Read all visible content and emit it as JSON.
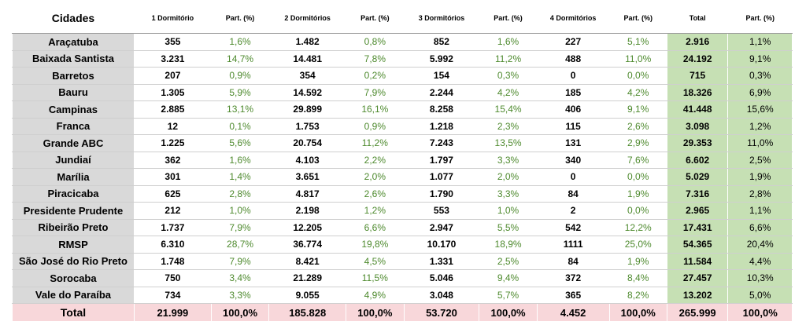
{
  "headers": [
    "Cidades",
    "1 Dormitório",
    "Part. (%)",
    "2 Dormitórios",
    "Part. (%)",
    "3 Dormitórios",
    "Part. (%)",
    "4 Dormitórios",
    "Part. (%)",
    "Total",
    "Part. (%)"
  ],
  "rows": [
    [
      "Araçatuba",
      "355",
      "1,6%",
      "1.482",
      "0,8%",
      "852",
      "1,6%",
      "227",
      "5,1%",
      "2.916",
      "1,1%"
    ],
    [
      "Baixada Santista",
      "3.231",
      "14,7%",
      "14.481",
      "7,8%",
      "5.992",
      "11,2%",
      "488",
      "11,0%",
      "24.192",
      "9,1%"
    ],
    [
      "Barretos",
      "207",
      "0,9%",
      "354",
      "0,2%",
      "154",
      "0,3%",
      "0",
      "0,0%",
      "715",
      "0,3%"
    ],
    [
      "Bauru",
      "1.305",
      "5,9%",
      "14.592",
      "7,9%",
      "2.244",
      "4,2%",
      "185",
      "4,2%",
      "18.326",
      "6,9%"
    ],
    [
      "Campinas",
      "2.885",
      "13,1%",
      "29.899",
      "16,1%",
      "8.258",
      "15,4%",
      "406",
      "9,1%",
      "41.448",
      "15,6%"
    ],
    [
      "Franca",
      "12",
      "0,1%",
      "1.753",
      "0,9%",
      "1.218",
      "2,3%",
      "115",
      "2,6%",
      "3.098",
      "1,2%"
    ],
    [
      "Grande ABC",
      "1.225",
      "5,6%",
      "20.754",
      "11,2%",
      "7.243",
      "13,5%",
      "131",
      "2,9%",
      "29.353",
      "11,0%"
    ],
    [
      "Jundiaí",
      "362",
      "1,6%",
      "4.103",
      "2,2%",
      "1.797",
      "3,3%",
      "340",
      "7,6%",
      "6.602",
      "2,5%"
    ],
    [
      "Marília",
      "301",
      "1,4%",
      "3.651",
      "2,0%",
      "1.077",
      "2,0%",
      "0",
      "0,0%",
      "5.029",
      "1,9%"
    ],
    [
      "Piracicaba",
      "625",
      "2,8%",
      "4.817",
      "2,6%",
      "1.790",
      "3,3%",
      "84",
      "1,9%",
      "7.316",
      "2,8%"
    ],
    [
      "Presidente Prudente",
      "212",
      "1,0%",
      "2.198",
      "1,2%",
      "553",
      "1,0%",
      "2",
      "0,0%",
      "2.965",
      "1,1%"
    ],
    [
      "Ribeirão Preto",
      "1.737",
      "7,9%",
      "12.205",
      "6,6%",
      "2.947",
      "5,5%",
      "542",
      "12,2%",
      "17.431",
      "6,6%"
    ],
    [
      "RMSP",
      "6.310",
      "28,7%",
      "36.774",
      "19,8%",
      "10.170",
      "18,9%",
      "1111",
      "25,0%",
      "54.365",
      "20,4%"
    ],
    [
      "São José do Rio Preto",
      "1.748",
      "7,9%",
      "8.421",
      "4,5%",
      "1.331",
      "2,5%",
      "84",
      "1,9%",
      "11.584",
      "4,4%"
    ],
    [
      "Sorocaba",
      "750",
      "3,4%",
      "21.289",
      "11,5%",
      "5.046",
      "9,4%",
      "372",
      "8,4%",
      "27.457",
      "10,3%"
    ],
    [
      "Vale do Paraíba",
      "734",
      "3,3%",
      "9.055",
      "4,9%",
      "3.048",
      "5,7%",
      "365",
      "8,2%",
      "13.202",
      "5,0%"
    ]
  ],
  "total": [
    "Total",
    "21.999",
    "100,0%",
    "185.828",
    "100,0%",
    "53.720",
    "100,0%",
    "4.452",
    "100,0%",
    "265.999",
    "100,0%"
  ],
  "colors": {
    "city_bg": "#d9d9d9",
    "pct_text": "#4e8a2e",
    "total_col_bg": "#c6e0b4",
    "total_row_bg": "#f8d7da"
  }
}
